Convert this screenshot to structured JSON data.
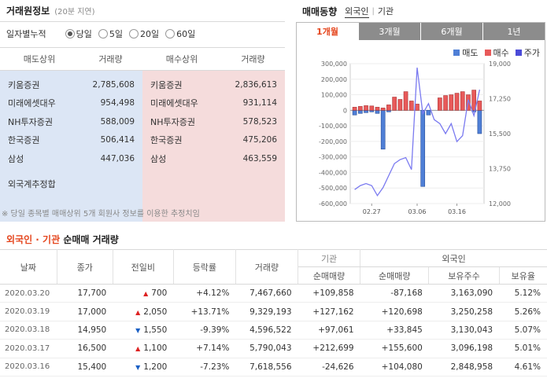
{
  "broker": {
    "title": "거래원정보",
    "delay": "(20분 지연)",
    "period_label": "일자별누적",
    "periods": [
      "당일",
      "5일",
      "20일",
      "60일"
    ],
    "selected_period": "당일",
    "col_sell_top": "매도상위",
    "col_volume": "거래량",
    "col_buy_top": "매수상위",
    "col_volume2": "거래량",
    "sell": [
      {
        "name": "키움증권",
        "vol": "2,785,608"
      },
      {
        "name": "미래에셋대우",
        "vol": "954,498"
      },
      {
        "name": "NH투자증권",
        "vol": "588,009"
      },
      {
        "name": "한국증권",
        "vol": "506,414"
      },
      {
        "name": "삼성",
        "vol": "447,036"
      }
    ],
    "buy": [
      {
        "name": "키움증권",
        "vol": "2,836,613"
      },
      {
        "name": "미래에셋대우",
        "vol": "931,114"
      },
      {
        "name": "NH투자증권",
        "vol": "578,523"
      },
      {
        "name": "한국증권",
        "vol": "475,206"
      },
      {
        "name": "삼성",
        "vol": "463,559"
      }
    ],
    "foreign_estimate": "외국계추정합",
    "note": "※ 당일 종목별 매매상위 5개 회원사 정보를 이용한 추정치임"
  },
  "trend": {
    "title": "매매동향",
    "links": [
      "외국인",
      "기관"
    ],
    "selected_link": "외국인",
    "tabs": [
      "1개월",
      "3개월",
      "6개월",
      "1년"
    ],
    "selected_tab": "1개월",
    "legend": [
      {
        "label": "매도",
        "color": "#4f7fd6"
      },
      {
        "label": "매수",
        "color": "#e85a5a"
      },
      {
        "label": "주가",
        "color": "#4b4bd8"
      }
    ]
  },
  "chart_data": {
    "type": "bar",
    "x_ticks": [
      "02.27",
      "03.06",
      "03.16"
    ],
    "y_left_ticks": [
      "300,000",
      "200,000",
      "100,000",
      "0",
      "-100,000",
      "-200,000",
      "-300,000",
      "-400,000",
      "-500,000",
      "-600,000"
    ],
    "y_right_ticks": [
      "19,000",
      "17,250",
      "15,500",
      "13,750",
      "12,000"
    ],
    "ylim_left": [
      -600000,
      300000
    ],
    "ylim_right": [
      12000,
      19000
    ],
    "series": [
      {
        "name": "매수",
        "color": "#e85a5a",
        "values": [
          20000,
          25000,
          30000,
          28000,
          20000,
          15000,
          35000,
          85000,
          70000,
          120000,
          60000,
          40000,
          0,
          0,
          0,
          80000,
          95000,
          100000,
          110000,
          120000,
          100000,
          130000,
          60000
        ]
      },
      {
        "name": "매도",
        "color": "#4f7fd6",
        "values": [
          -30000,
          -20000,
          -15000,
          -10000,
          -20000,
          -250000,
          -10000,
          0,
          0,
          0,
          0,
          0,
          -490000,
          -30000,
          0,
          0,
          0,
          0,
          0,
          0,
          0,
          -10000,
          -150000
        ]
      },
      {
        "name": "주가",
        "color": "#4b4bd8",
        "values": [
          12700,
          12900,
          13000,
          12900,
          12400,
          12800,
          13400,
          14000,
          14200,
          14300,
          13700,
          18800,
          16500,
          17000,
          16200,
          16000,
          15500,
          16000,
          15100,
          15400,
          17200,
          16400,
          17700
        ]
      }
    ]
  },
  "net": {
    "title_red": "외국인 · 기관",
    "title_rest": "순매매 거래량",
    "headers": {
      "date": "날짜",
      "close": "종가",
      "change": "전일비",
      "rate": "등락률",
      "volume": "거래량",
      "inst": "기관",
      "inst_net": "순매매량",
      "foreign": "외국인",
      "foreign_net": "순매매량",
      "holdings": "보유주수",
      "ratio": "보유율"
    },
    "rows": [
      {
        "date": "2020.03.20",
        "close": "17,700",
        "dir": "up",
        "change": "700",
        "rate": "+4.12%",
        "volume": "7,467,660",
        "inst": "+109,858",
        "foreign": "-87,168",
        "holdings": "3,163,090",
        "ratio": "5.12%"
      },
      {
        "date": "2020.03.19",
        "close": "17,000",
        "dir": "up",
        "change": "2,050",
        "rate": "+13.71%",
        "volume": "9,329,193",
        "inst": "+127,162",
        "foreign": "+120,698",
        "holdings": "3,250,258",
        "ratio": "5.26%"
      },
      {
        "date": "2020.03.18",
        "close": "14,950",
        "dir": "down",
        "change": "1,550",
        "rate": "-9.39%",
        "volume": "4,596,522",
        "inst": "+97,061",
        "foreign": "+33,845",
        "holdings": "3,130,043",
        "ratio": "5.07%"
      },
      {
        "date": "2020.03.17",
        "close": "16,500",
        "dir": "up",
        "change": "1,100",
        "rate": "+7.14%",
        "volume": "5,790,043",
        "inst": "+212,699",
        "foreign": "+155,600",
        "holdings": "3,096,198",
        "ratio": "5.01%"
      },
      {
        "date": "2020.03.16",
        "close": "15,400",
        "dir": "down",
        "change": "1,200",
        "rate": "-7.23%",
        "volume": "7,618,556",
        "inst": "-24,626",
        "foreign": "+104,080",
        "holdings": "2,848,958",
        "ratio": "4.61%"
      }
    ]
  }
}
